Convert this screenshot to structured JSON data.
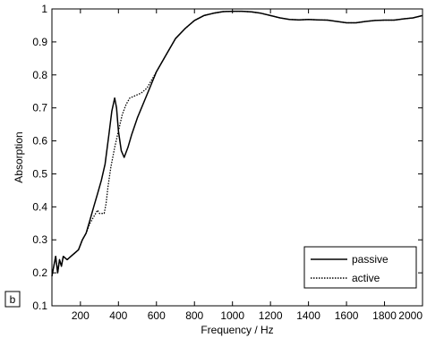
{
  "chart_data": {
    "type": "line",
    "title": "",
    "xlabel": "Frequency / Hz",
    "ylabel": "Absorption",
    "xlim": [
      50,
      2000
    ],
    "ylim": [
      0.1,
      1.0
    ],
    "xticks": [
      200,
      400,
      600,
      800,
      1000,
      1200,
      1400,
      1600,
      1800,
      2000
    ],
    "yticks": [
      0.1,
      0.2,
      0.3,
      0.4,
      0.5,
      0.6,
      0.7,
      0.8,
      0.9,
      1
    ],
    "grid": false,
    "legend_position": "bottom-right",
    "panel_label": "b",
    "series": [
      {
        "name": "passive",
        "style": "solid",
        "color": "#000000",
        "x": [
          50,
          60,
          70,
          80,
          90,
          100,
          110,
          130,
          150,
          170,
          190,
          210,
          230,
          250,
          270,
          290,
          310,
          330,
          350,
          365,
          380,
          390,
          400,
          415,
          430,
          450,
          470,
          500,
          550,
          600,
          650,
          700,
          750,
          800,
          850,
          900,
          950,
          1000,
          1050,
          1100,
          1150,
          1200,
          1250,
          1300,
          1350,
          1400,
          1450,
          1500,
          1550,
          1600,
          1650,
          1700,
          1750,
          1800,
          1850,
          1900,
          1950,
          2000
        ],
        "y": [
          0.19,
          0.22,
          0.25,
          0.2,
          0.24,
          0.22,
          0.25,
          0.24,
          0.25,
          0.26,
          0.27,
          0.3,
          0.32,
          0.36,
          0.4,
          0.44,
          0.48,
          0.53,
          0.62,
          0.69,
          0.73,
          0.7,
          0.63,
          0.57,
          0.55,
          0.58,
          0.62,
          0.67,
          0.74,
          0.81,
          0.86,
          0.91,
          0.94,
          0.965,
          0.98,
          0.987,
          0.992,
          0.993,
          0.993,
          0.991,
          0.987,
          0.98,
          0.973,
          0.968,
          0.967,
          0.968,
          0.967,
          0.966,
          0.962,
          0.958,
          0.958,
          0.962,
          0.965,
          0.966,
          0.966,
          0.97,
          0.973,
          0.98
        ]
      },
      {
        "name": "active",
        "style": "dotted",
        "color": "#000000",
        "x": [
          50,
          60,
          70,
          80,
          90,
          100,
          110,
          130,
          150,
          170,
          190,
          210,
          230,
          250,
          270,
          290,
          300,
          310,
          325,
          335,
          345,
          360,
          380,
          400,
          420,
          440,
          460,
          480,
          500,
          520,
          550,
          600,
          650,
          700,
          750,
          800,
          850,
          900,
          950,
          1000,
          1050,
          1100,
          1150,
          1200,
          1250,
          1300,
          1350,
          1400,
          1450,
          1500,
          1550,
          1600,
          1650,
          1700,
          1750,
          1800,
          1850,
          1900,
          1950,
          2000
        ],
        "y": [
          0.19,
          0.22,
          0.25,
          0.2,
          0.24,
          0.22,
          0.25,
          0.24,
          0.25,
          0.26,
          0.27,
          0.3,
          0.32,
          0.35,
          0.37,
          0.39,
          0.38,
          0.38,
          0.38,
          0.41,
          0.46,
          0.52,
          0.58,
          0.63,
          0.68,
          0.71,
          0.73,
          0.735,
          0.74,
          0.745,
          0.76,
          0.81,
          0.86,
          0.91,
          0.94,
          0.965,
          0.98,
          0.987,
          0.992,
          0.993,
          0.993,
          0.991,
          0.987,
          0.98,
          0.973,
          0.968,
          0.967,
          0.968,
          0.967,
          0.966,
          0.962,
          0.958,
          0.958,
          0.962,
          0.965,
          0.966,
          0.966,
          0.97,
          0.973,
          0.98
        ]
      }
    ]
  }
}
